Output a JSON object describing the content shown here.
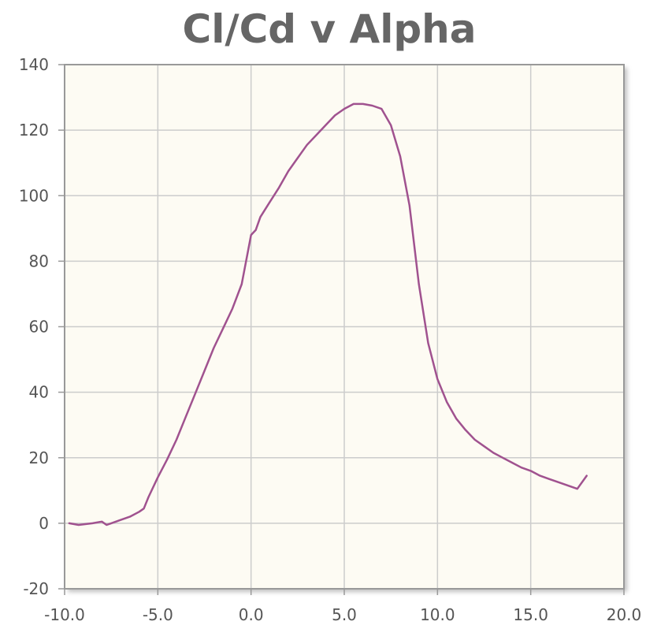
{
  "chart_data": {
    "type": "line",
    "title": "Cl/Cd v Alpha",
    "xlabel": "",
    "ylabel": "",
    "xlim": [
      -10,
      20
    ],
    "ylim": [
      -20,
      140
    ],
    "xticks": [
      -10,
      -5,
      0,
      5,
      10,
      15,
      20
    ],
    "yticks": [
      -20,
      0,
      20,
      40,
      60,
      80,
      100,
      120,
      140
    ],
    "xtick_labels": [
      "-10.0",
      "-5.0",
      "0.0",
      "5.0",
      "10.0",
      "15.0",
      "20.0"
    ],
    "ytick_labels": [
      "-20",
      "0",
      "20",
      "40",
      "60",
      "80",
      "100",
      "120",
      "140"
    ],
    "grid": true,
    "colors": {
      "line": "#a0528f",
      "plot_bg": "#fdfbf3",
      "grid": "#cccccc",
      "frame": "#999999"
    },
    "series": [
      {
        "x": [
          -9.75,
          -9.25,
          -8.5,
          -8.0,
          -7.75,
          -7.5,
          -7.0,
          -6.5,
          -6.0,
          -5.75,
          -5.5,
          -5.0,
          -4.5,
          -4.0,
          -3.5,
          -3.0,
          -2.5,
          -2.0,
          -1.5,
          -1.0,
          -0.5,
          0.0,
          0.25,
          0.5,
          1.0,
          1.5,
          2.0,
          2.5,
          3.0,
          3.5,
          4.0,
          4.5,
          5.0,
          5.5,
          6.0,
          6.5,
          7.0,
          7.5,
          8.0,
          8.5,
          9.0,
          9.5,
          10.0,
          10.5,
          11.0,
          11.5,
          12.0,
          12.5,
          13.0,
          13.5,
          14.0,
          14.5,
          15.0,
          15.5,
          16.0,
          16.5,
          17.0,
          17.5,
          18.0
        ],
        "y": [
          0.0,
          -0.5,
          0.0,
          0.5,
          -0.5,
          0.0,
          1.0,
          2.0,
          3.5,
          4.5,
          8.0,
          14.0,
          19.5,
          25.5,
          32.5,
          39.5,
          46.5,
          53.5,
          59.5,
          65.5,
          73.0,
          88.0,
          89.5,
          93.5,
          98.0,
          102.5,
          107.5,
          111.5,
          115.5,
          118.5,
          121.5,
          124.5,
          126.5,
          128.0,
          128.0,
          127.5,
          126.5,
          121.5,
          112.0,
          97.0,
          73.0,
          55.0,
          44.0,
          37.0,
          32.0,
          28.5,
          25.5,
          23.5,
          21.5,
          20.0,
          18.5,
          17.0,
          16.0,
          14.5,
          13.5,
          12.5,
          11.5,
          10.5,
          14.5
        ]
      }
    ]
  }
}
